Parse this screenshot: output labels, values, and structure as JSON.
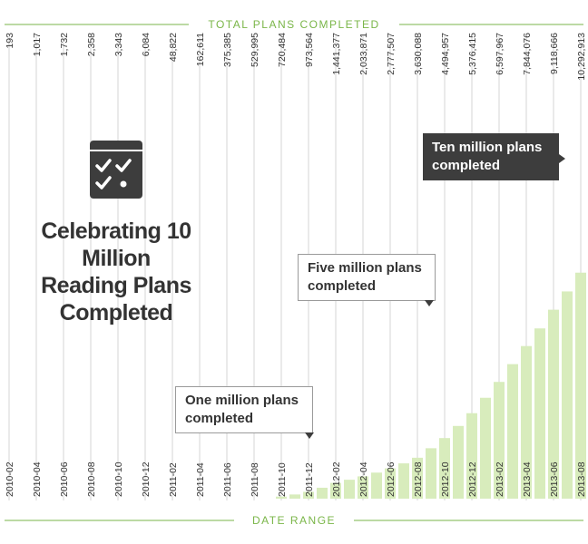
{
  "chart_data": {
    "type": "bar",
    "title": "TOTAL PLANS COMPLETED",
    "xlabel": "DATE RANGE",
    "ylabel": "",
    "ylim": [
      0,
      11000000
    ],
    "categories": [
      "2010-02",
      "2010-04",
      "2010-06",
      "2010-08",
      "2010-10",
      "2010-12",
      "2011-02",
      "2011-04",
      "2011-06",
      "2011-08",
      "2011-10",
      "2011-12",
      "2012-02",
      "2012-04",
      "2012-06",
      "2012-08",
      "2012-10",
      "2012-12",
      "2013-02",
      "2013-04",
      "2013-06",
      "2013-08"
    ],
    "value_labels": [
      "193",
      "1,017",
      "1,732",
      "2,358",
      "3,343",
      "6,084",
      "48,822",
      "162,611",
      "375,385",
      "529,995",
      "720,484",
      "973,564",
      "1,441,377",
      "2,033,871",
      "2,777,507",
      "3,630,088",
      "4,494,957",
      "5,376,415",
      "6,597,967",
      "7,844,076",
      "9,118,666",
      "10,292,913"
    ],
    "values": [
      193,
      1017,
      1732,
      2358,
      3343,
      6084,
      48822,
      162611,
      375385,
      529995,
      720484,
      973564,
      1441377,
      2033871,
      2777507,
      3630088,
      4494957,
      5376415,
      6597967,
      7844076,
      9118666,
      10292913
    ],
    "monthly_values": [
      0,
      0,
      0,
      0,
      0,
      0,
      0,
      0,
      0,
      0,
      0,
      0,
      0,
      0,
      0,
      0,
      0,
      0,
      0,
      0,
      48822,
      100000,
      162611,
      260000,
      375385,
      450000,
      529995,
      620000,
      720484,
      840000,
      973564,
      1200000,
      1441377,
      1730000,
      2033871,
      2400000,
      2777507,
      3200000,
      3630088,
      4050000,
      4494957,
      4930000,
      5376415,
      5950000,
      6597967,
      7200000,
      7844076,
      8480000,
      9118666,
      9700000,
      10292913
    ]
  },
  "headline": "Celebrating 10 Million Reading Plans Completed",
  "annotations": [
    {
      "text": "One million plans completed"
    },
    {
      "text": "Five million plans completed"
    },
    {
      "text": "Ten million plans completed"
    }
  ],
  "colors": {
    "bar": "#d8ecbc",
    "accent": "#7ab648",
    "text": "#333333",
    "dark": "#3d3d3d",
    "grid": "#d4d4d4"
  },
  "icon": "calendar-check-icon"
}
